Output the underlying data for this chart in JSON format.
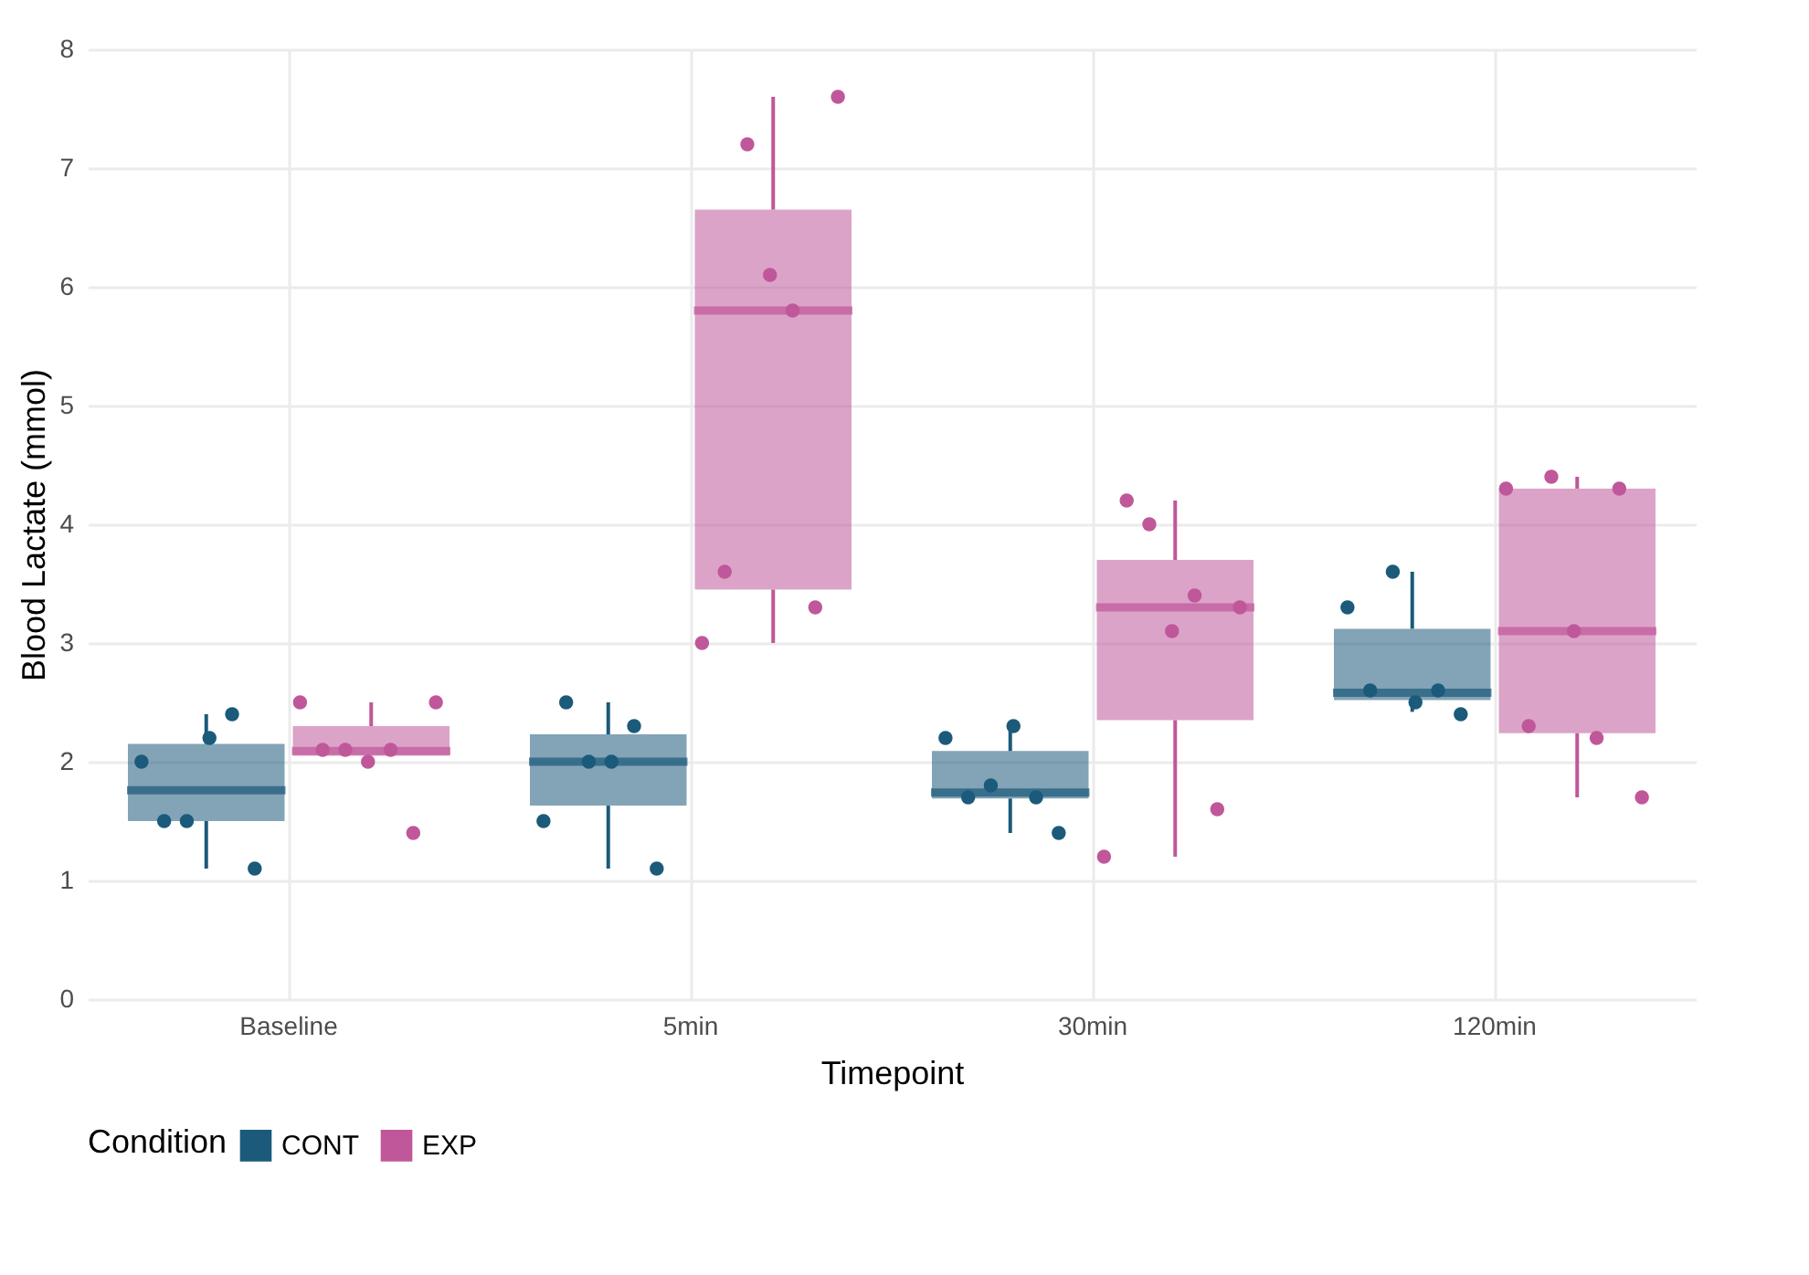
{
  "chart_data": {
    "type": "box",
    "xlabel": "Timepoint",
    "ylabel": "Blood Lactate (mmol)",
    "legend_title": "Condition",
    "categories": [
      "Baseline",
      "5min",
      "30min",
      "120min"
    ],
    "series": [
      {
        "name": "CONT",
        "color": "#1b5a7a",
        "boxes": [
          {
            "low": 1.1,
            "q1": 1.5,
            "median": 1.76,
            "q3": 2.15,
            "high": 2.4
          },
          {
            "low": 1.1,
            "q1": 1.63,
            "median": 2.0,
            "q3": 2.23,
            "high": 2.5
          },
          {
            "low": 1.4,
            "q1": 1.69,
            "median": 1.74,
            "q3": 2.09,
            "high": 2.3
          },
          {
            "low": 2.42,
            "q1": 2.52,
            "median": 2.58,
            "q3": 3.12,
            "high": 3.6
          }
        ]
      },
      {
        "name": "EXP",
        "color": "#c0579a",
        "boxes": [
          {
            "low": 2.05,
            "q1": 2.05,
            "median": 2.09,
            "q3": 2.3,
            "high": 2.5
          },
          {
            "low": 3.0,
            "q1": 3.45,
            "median": 5.8,
            "q3": 6.65,
            "high": 7.6
          },
          {
            "low": 1.2,
            "q1": 2.35,
            "median": 3.3,
            "q3": 3.7,
            "high": 4.2
          },
          {
            "low": 1.7,
            "q1": 2.24,
            "median": 3.1,
            "q3": 4.3,
            "high": 4.4
          }
        ]
      },
      {
        "type": "scatter",
        "color": "#1b5a7a",
        "x": [
          "Baseline",
          "Baseline",
          "Baseline",
          "Baseline",
          "Baseline",
          "Baseline",
          "5min",
          "5min",
          "5min",
          "5min",
          "5min",
          "5min",
          "30min",
          "30min",
          "30min",
          "30min",
          "30min",
          "30min",
          "120min",
          "120min",
          "120min",
          "120min",
          "120min",
          "120min"
        ],
        "values": [
          2.0,
          1.5,
          1.5,
          2.2,
          2.4,
          1.1,
          1.5,
          2.5,
          2.0,
          2.0,
          2.3,
          1.1,
          2.2,
          1.7,
          1.8,
          2.3,
          1.7,
          1.4,
          3.3,
          2.6,
          3.6,
          2.5,
          2.6,
          2.4
        ]
      },
      {
        "type": "scatter",
        "color": "#c0579a",
        "x": [
          "Baseline",
          "Baseline",
          "Baseline",
          "Baseline",
          "Baseline",
          "Baseline",
          "Baseline",
          "5min",
          "5min",
          "5min",
          "5min",
          "5min",
          "5min",
          "5min",
          "30min",
          "30min",
          "30min",
          "30min",
          "30min",
          "30min",
          "30min",
          "120min",
          "120min",
          "120min",
          "120min",
          "120min",
          "120min",
          "120min"
        ],
        "values": [
          2.5,
          2.1,
          2.1,
          2.0,
          2.1,
          1.4,
          2.5,
          3.0,
          3.6,
          7.2,
          6.1,
          5.8,
          3.3,
          7.6,
          1.2,
          4.2,
          4.0,
          3.1,
          3.4,
          1.6,
          3.3,
          4.3,
          2.3,
          4.4,
          3.1,
          2.2,
          4.3,
          1.7
        ]
      }
    ],
    "ylim": [
      0,
      8
    ],
    "yticks": [
      0,
      1,
      2,
      3,
      4,
      5,
      6,
      7,
      8
    ],
    "grid": true,
    "legend": "bottom",
    "marker": "circle"
  }
}
